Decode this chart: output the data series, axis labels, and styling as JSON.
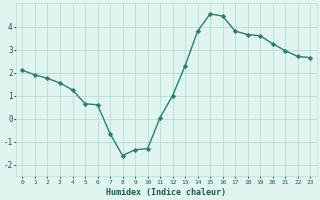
{
  "xlabel": "Humidex (Indice chaleur)",
  "x": [
    0,
    1,
    2,
    3,
    4,
    5,
    6,
    7,
    8,
    9,
    10,
    11,
    12,
    13,
    14,
    15,
    16,
    17,
    18,
    19,
    20,
    21,
    22,
    23
  ],
  "y": [
    2.1,
    1.9,
    1.75,
    1.55,
    1.25,
    0.65,
    0.6,
    -0.65,
    -1.6,
    -1.35,
    -1.3,
    0.05,
    1.0,
    2.3,
    3.8,
    4.55,
    4.45,
    3.8,
    3.65,
    3.6,
    3.25,
    2.95,
    2.7,
    2.65
  ],
  "line_color": "#2e7d6e",
  "marker": "D",
  "marker_size": 2.2,
  "bg_color": "#e0f5f0",
  "grid_color": "#b8ddd6",
  "tick_label_color": "#1a5c50",
  "xlabel_color": "#1a5c50",
  "ylim": [
    -2.5,
    5.0
  ],
  "xlim": [
    -0.5,
    23.5
  ],
  "yticks": [
    -2,
    -1,
    0,
    1,
    2,
    3,
    4
  ],
  "xticks": [
    0,
    1,
    2,
    3,
    4,
    5,
    6,
    7,
    8,
    9,
    10,
    11,
    12,
    13,
    14,
    15,
    16,
    17,
    18,
    19,
    20,
    21,
    22,
    23
  ],
  "xtick_labels": [
    "0",
    "1",
    "2",
    "3",
    "4",
    "5",
    "6",
    "7",
    "8",
    "9",
    "10",
    "11",
    "12",
    "13",
    "14",
    "15",
    "16",
    "17",
    "18",
    "19",
    "20",
    "21",
    "22",
    "23"
  ]
}
